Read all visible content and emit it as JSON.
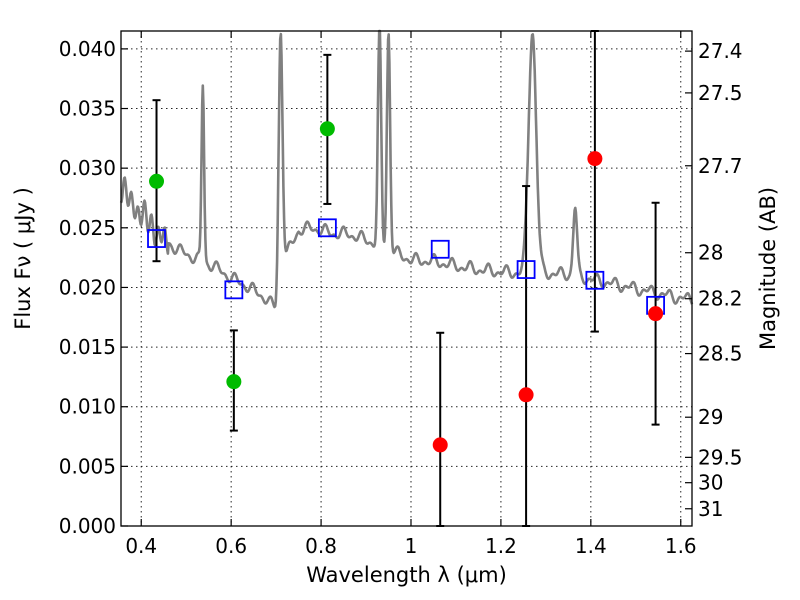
{
  "chart_data": {
    "type": "scatter",
    "xlabel": "Wavelength  λ (μm)",
    "ylabel": "Flux  Fν  ( μJy )",
    "y2label": "Magnitude (AB)",
    "xlim": [
      0.355,
      1.625
    ],
    "ylim": [
      0.0,
      0.0415
    ],
    "grid": true,
    "x_ticks": [
      {
        "value": 0.4,
        "label": "0.4"
      },
      {
        "value": 0.6,
        "label": "0.6"
      },
      {
        "value": 0.8,
        "label": "0.8"
      },
      {
        "value": 1.0,
        "label": "1"
      },
      {
        "value": 1.2,
        "label": "1.2"
      },
      {
        "value": 1.4,
        "label": "1.4"
      },
      {
        "value": 1.6,
        "label": "1.6"
      }
    ],
    "y_ticks": [
      {
        "value": 0.0,
        "label": "0.000"
      },
      {
        "value": 0.005,
        "label": "0.005"
      },
      {
        "value": 0.01,
        "label": "0.010"
      },
      {
        "value": 0.015,
        "label": "0.015"
      },
      {
        "value": 0.02,
        "label": "0.020"
      },
      {
        "value": 0.025,
        "label": "0.025"
      },
      {
        "value": 0.03,
        "label": "0.030"
      },
      {
        "value": 0.035,
        "label": "0.035"
      },
      {
        "value": 0.04,
        "label": "0.040"
      }
    ],
    "y2_ticks": [
      {
        "value": 27.4,
        "label": "27.4"
      },
      {
        "value": 27.5,
        "label": "27.5"
      },
      {
        "value": 27.7,
        "label": "27.7"
      },
      {
        "value": 28.0,
        "label": "28"
      },
      {
        "value": 28.2,
        "label": "28.2"
      },
      {
        "value": 28.5,
        "label": "28.5"
      },
      {
        "value": 29.0,
        "label": "29"
      },
      {
        "value": 29.5,
        "label": "29.5"
      },
      {
        "value": 30.0,
        "label": "30"
      },
      {
        "value": 31.0,
        "label": "31"
      }
    ],
    "colors": {
      "sed": "#808080",
      "model": "#0000ff",
      "green": "#00bb00",
      "red": "#ff0000",
      "errorbar": "#000000"
    },
    "sed_continuum": [
      [
        0.355,
        0.0285
      ],
      [
        0.37,
        0.0275
      ],
      [
        0.39,
        0.0265
      ],
      [
        0.41,
        0.0258
      ],
      [
        0.43,
        0.0248
      ],
      [
        0.45,
        0.024
      ],
      [
        0.48,
        0.0232
      ],
      [
        0.5,
        0.0228
      ],
      [
        0.53,
        0.0223
      ],
      [
        0.56,
        0.0218
      ],
      [
        0.6,
        0.0208
      ],
      [
        0.64,
        0.02
      ],
      [
        0.68,
        0.019
      ],
      [
        0.7,
        0.0181
      ],
      [
        0.72,
        0.0225
      ],
      [
        0.75,
        0.0248
      ],
      [
        0.78,
        0.025
      ],
      [
        0.8,
        0.0248
      ],
      [
        0.83,
        0.0245
      ],
      [
        0.86,
        0.0245
      ],
      [
        0.9,
        0.024
      ],
      [
        0.95,
        0.0232
      ],
      [
        1.0,
        0.0223
      ],
      [
        1.05,
        0.0222
      ],
      [
        1.1,
        0.0218
      ],
      [
        1.15,
        0.0215
      ],
      [
        1.2,
        0.0213
      ],
      [
        1.25,
        0.0212
      ],
      [
        1.3,
        0.0212
      ],
      [
        1.35,
        0.0211
      ],
      [
        1.4,
        0.0207
      ],
      [
        1.45,
        0.0203
      ],
      [
        1.5,
        0.0199
      ],
      [
        1.55,
        0.0195
      ],
      [
        1.6,
        0.0191
      ],
      [
        1.625,
        0.019
      ]
    ],
    "sed_lines": [
      {
        "x": 0.537,
        "peak": 0.037,
        "w": 0.004
      },
      {
        "x": 0.71,
        "peak": 0.0415,
        "w": 0.006
      },
      {
        "x": 0.93,
        "peak": 0.0415,
        "w": 0.005
      },
      {
        "x": 0.95,
        "peak": 0.0415,
        "w": 0.005
      },
      {
        "x": 1.27,
        "peak": 0.0415,
        "w": 0.012
      },
      {
        "x": 1.365,
        "peak": 0.0267,
        "w": 0.006
      }
    ],
    "model_points": [
      {
        "x": 0.434,
        "y": 0.0241
      },
      {
        "x": 0.606,
        "y": 0.0198
      },
      {
        "x": 0.814,
        "y": 0.025
      },
      {
        "x": 1.065,
        "y": 0.0232
      },
      {
        "x": 1.256,
        "y": 0.0215
      },
      {
        "x": 1.409,
        "y": 0.0206
      },
      {
        "x": 1.544,
        "y": 0.0185
      }
    ],
    "green_points": [
      {
        "x": 0.434,
        "y": 0.0289,
        "err_lo": 0.0222,
        "err_hi": 0.0357
      },
      {
        "x": 0.606,
        "y": 0.0121,
        "err_lo": 0.008,
        "err_hi": 0.0164
      },
      {
        "x": 0.814,
        "y": 0.0333,
        "err_lo": 0.027,
        "err_hi": 0.0395
      }
    ],
    "red_points": [
      {
        "x": 1.065,
        "y": 0.0068,
        "err_lo": 0.0,
        "err_hi": 0.0162
      },
      {
        "x": 1.256,
        "y": 0.011,
        "err_lo": 0.0,
        "err_hi": 0.0285
      },
      {
        "x": 1.409,
        "y": 0.0308,
        "err_lo": 0.0163,
        "err_hi": 0.0415
      },
      {
        "x": 1.544,
        "y": 0.0178,
        "err_lo": 0.0085,
        "err_hi": 0.0271
      }
    ]
  }
}
